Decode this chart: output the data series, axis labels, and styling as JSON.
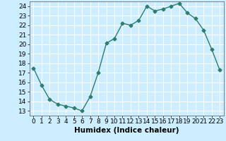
{
  "x": [
    0,
    1,
    2,
    3,
    4,
    5,
    6,
    7,
    8,
    9,
    10,
    11,
    12,
    13,
    14,
    15,
    16,
    17,
    18,
    19,
    20,
    21,
    22,
    23
  ],
  "y": [
    17.5,
    15.7,
    14.2,
    13.7,
    13.5,
    13.3,
    13.0,
    14.5,
    17.0,
    20.1,
    20.6,
    22.2,
    22.0,
    22.5,
    24.0,
    23.5,
    23.7,
    24.0,
    24.3,
    23.3,
    22.7,
    21.5,
    19.5,
    17.3
  ],
  "line_color": "#2e7d6e",
  "marker": "D",
  "marker_size": 2.5,
  "bg_color": "#cceeff",
  "grid_color": "#ffffff",
  "xlabel": "Humidex (Indice chaleur)",
  "xlim": [
    -0.5,
    23.5
  ],
  "ylim": [
    12.5,
    24.5
  ],
  "yticks": [
    13,
    14,
    15,
    16,
    17,
    18,
    19,
    20,
    21,
    22,
    23,
    24
  ],
  "xticks": [
    0,
    1,
    2,
    3,
    4,
    5,
    6,
    7,
    8,
    9,
    10,
    11,
    12,
    13,
    14,
    15,
    16,
    17,
    18,
    19,
    20,
    21,
    22,
    23
  ],
  "tick_fontsize": 6.5,
  "xlabel_fontsize": 7.5
}
